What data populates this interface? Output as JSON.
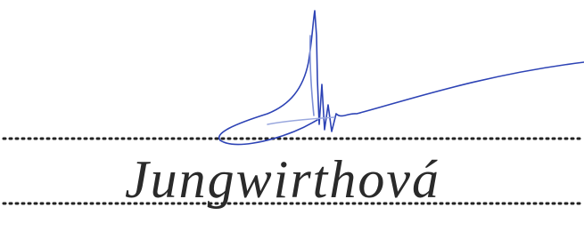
{
  "name": "Jungwirthová"
}
